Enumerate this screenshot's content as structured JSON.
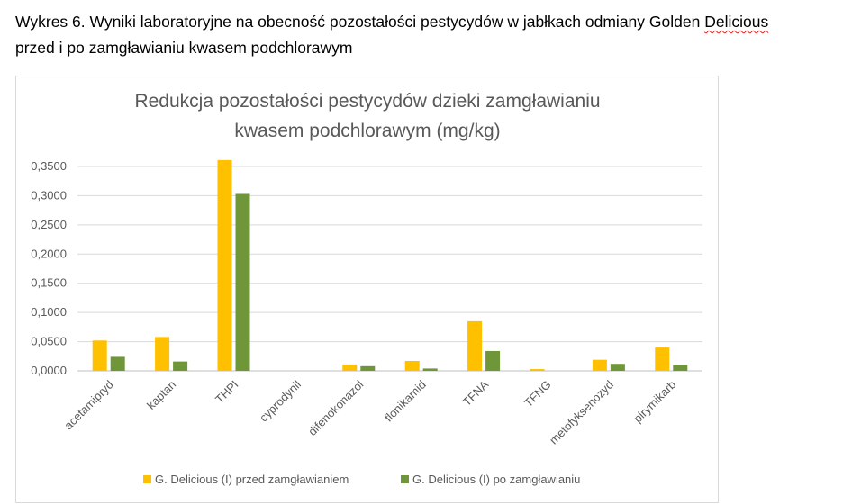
{
  "document": {
    "caption_prefix": "Wykres 6. Wyniki laboratoryjne na obecność pozostałości pestycydów w jabłkach odmiany Golden ",
    "caption_flagged_word": "Delicious",
    "caption_line2": "przed i po zamgławianiu kwasem podchlorawym"
  },
  "chart_data": {
    "type": "bar",
    "title_line1": "Redukcja pozostałości pestycydów dzieki zamgławianiu",
    "title_line2": "kwasem podchlorawym (mg/kg)",
    "xlabel": "",
    "ylabel": "",
    "ylim": [
      0,
      0.35
    ],
    "yticks": [
      "0,0000",
      "0,0500",
      "0,1000",
      "0,1500",
      "0,2000",
      "0,2500",
      "0,3000",
      "0,3500"
    ],
    "categories": [
      "acetamipryd",
      "kaptan",
      "THPI",
      "cyprodynil",
      "difenokonazol",
      "flonikamid",
      "TFNA",
      "TFNG",
      "metofyksenozyd",
      "pirymikarb"
    ],
    "series": [
      {
        "name": "G. Delicious (I) przed zamgławianiem",
        "color": "#FFC000",
        "values": [
          0.052,
          0.058,
          0.361,
          0.0,
          0.011,
          0.017,
          0.085,
          0.003,
          0.019,
          0.04
        ]
      },
      {
        "name": "G. Delicious (I) po zamgławianiu",
        "color": "#70963A",
        "values": [
          0.024,
          0.016,
          0.303,
          0.0,
          0.008,
          0.004,
          0.034,
          0.0,
          0.012,
          0.01
        ]
      }
    ],
    "grid": true,
    "legend_position": "bottom"
  }
}
